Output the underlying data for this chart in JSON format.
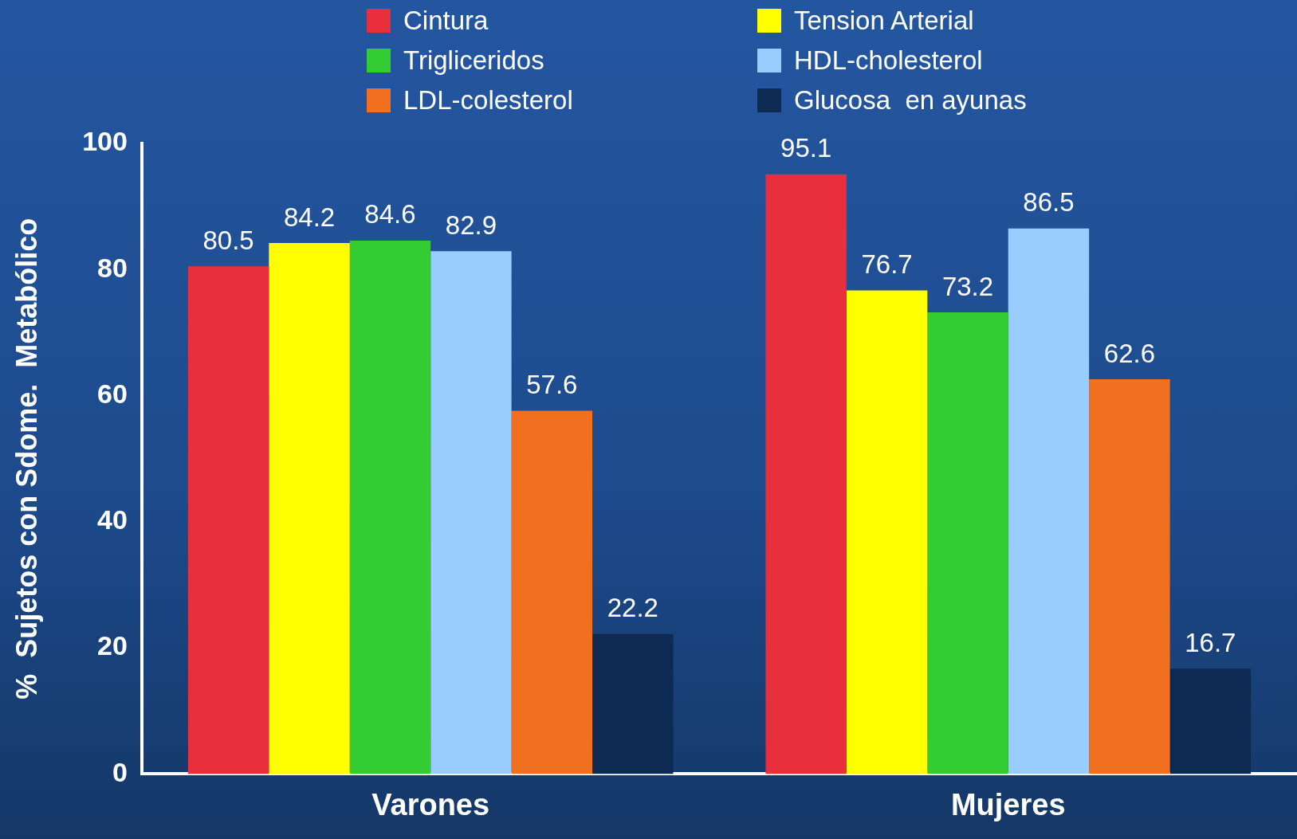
{
  "chart_data": {
    "type": "bar",
    "ylabel": "%  Sujetos con Sdome.  Metabólico",
    "categories": [
      "Varones",
      "Mujeres"
    ],
    "series": [
      {
        "name": "Cintura",
        "color": "#e8303c",
        "values": [
          80.5,
          95.1
        ]
      },
      {
        "name": "Tension Arterial",
        "color": "#ffff00",
        "values": [
          84.2,
          76.7
        ]
      },
      {
        "name": "Trigliceridos",
        "color": "#33cc33",
        "values": [
          84.6,
          73.2
        ]
      },
      {
        "name": "HDL-cholesterol",
        "color": "#99ccff",
        "values": [
          82.9,
          86.5
        ]
      },
      {
        "name": "LDL-colesterol",
        "color": "#f07020",
        "values": [
          57.6,
          62.6
        ]
      },
      {
        "name": "Glucosa  en ayunas",
        "color": "#0d2a52",
        "values": [
          22.2,
          16.7
        ]
      }
    ],
    "ylim": [
      0,
      100
    ],
    "yticks": [
      0,
      20,
      40,
      60,
      80,
      100
    ],
    "grid": false,
    "legend": "top",
    "data_labels": true
  }
}
